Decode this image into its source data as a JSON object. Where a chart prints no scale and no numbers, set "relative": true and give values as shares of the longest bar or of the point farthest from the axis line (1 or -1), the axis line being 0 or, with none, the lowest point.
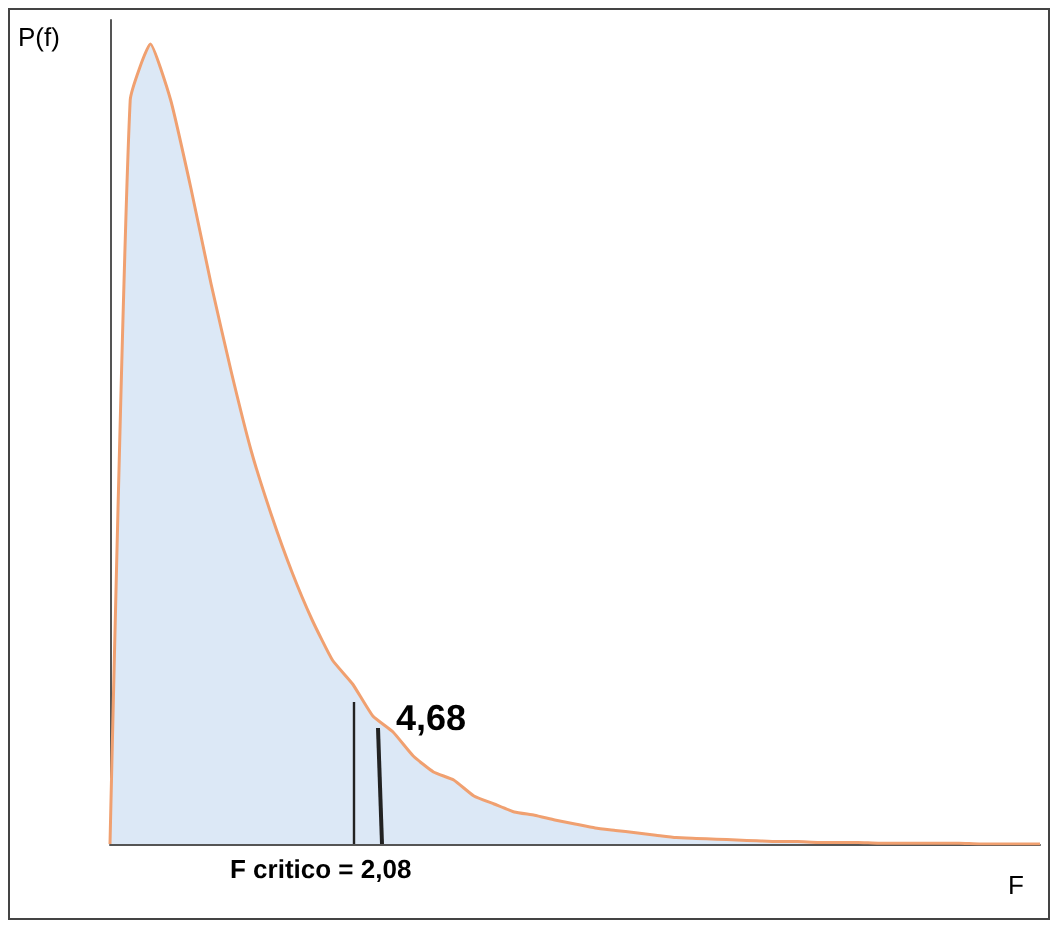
{
  "chart_data": {
    "type": "area",
    "relative": true,
    "ylabel": "P(f)",
    "xlabel": "F",
    "color": "#f0a070",
    "categories": [
      null,
      null,
      null,
      null,
      null,
      null,
      null,
      null,
      null,
      null,
      null,
      null,
      null,
      null,
      null,
      null,
      null,
      null,
      null,
      null,
      null,
      null,
      null,
      null,
      null,
      null,
      null,
      null,
      null,
      null,
      null,
      null,
      null,
      null,
      null,
      null,
      null,
      null,
      null,
      null,
      null,
      null,
      null,
      null,
      null,
      null,
      null
    ],
    "values": [
      0,
      0.93,
      1,
      0.93,
      0.82,
      0.7,
      0.59,
      0.49,
      0.41,
      0.34,
      0.28,
      0.23,
      0.2,
      0.16,
      0.14,
      0.11,
      0.09,
      0.08,
      0.06,
      0.05,
      0.04,
      0.036,
      0.03,
      0.025,
      0.02,
      0.017,
      0.014,
      0.011,
      0.008,
      0.007,
      0.006,
      0.005,
      0.004,
      0.003,
      0.003,
      0.002,
      0.002,
      0.002,
      0.001,
      0.001,
      0.001,
      0.001,
      0.001,
      0,
      0,
      0,
      0
    ],
    "annotations": [
      "F critico = 2,08",
      "4,68"
    ],
    "grid": false,
    "marker": "none"
  }
}
